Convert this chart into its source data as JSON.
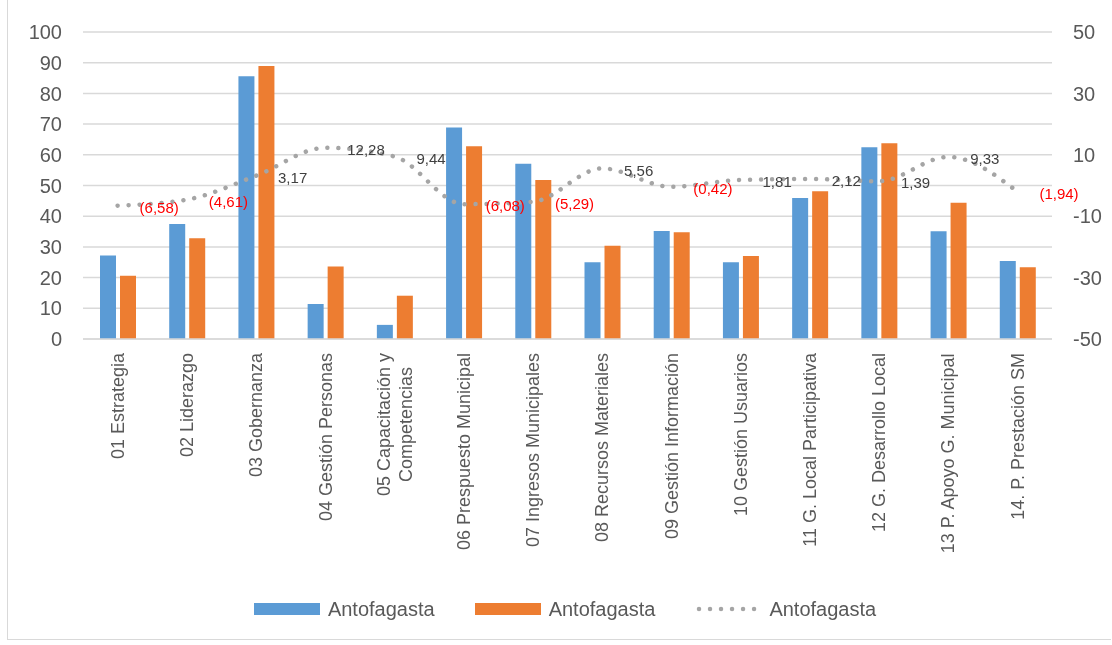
{
  "chart_data": {
    "type": "bar",
    "categories": [
      "01 Estrategia",
      "02 Liderazgo",
      "03 Gobernanza",
      "04 Gestión Personas",
      "05 Capacitación y Competencias",
      "06 Prespuesto Municipal",
      "07 Ingresos Municipales",
      "08 Recursos Materiales",
      "09 Gestión Información",
      "10 Gestión Usuarios",
      "11 G. Local Participativa",
      "12 G. Desarrollo Local",
      "13 P. Apoyo G. Municipal",
      "14. P. Prestación SM"
    ],
    "series": [
      {
        "name": "Antofagasta",
        "color": "#5b9bd5",
        "values": [
          27.2,
          37.5,
          85.6,
          11.4,
          4.6,
          68.9,
          57.1,
          25.0,
          35.2,
          25.0,
          45.9,
          62.5,
          35.1,
          25.4
        ]
      },
      {
        "name": "Antofagasta",
        "color": "#ed7d31",
        "values": [
          20.6,
          32.8,
          88.9,
          23.6,
          14.1,
          62.8,
          51.8,
          30.4,
          34.8,
          27.0,
          48.1,
          63.8,
          44.4,
          23.4
        ]
      },
      {
        "name": "Antofagasta",
        "type": "line",
        "axis": "y2",
        "color": "#a5a5a5",
        "line_style": "dotted",
        "values": [
          -6.58,
          -4.61,
          3.17,
          12.28,
          9.44,
          -6.08,
          -5.29,
          5.56,
          -0.42,
          1.81,
          2.12,
          1.39,
          9.33,
          -1.94
        ],
        "value_labels": [
          "(6,58)",
          "(4,61)",
          "3,17",
          "12,28",
          "9,44",
          "(6,08)",
          "(5,29)",
          "5,56",
          "(0,42)",
          "1,81",
          "2,12",
          "1,39",
          "9,33",
          "(1,94)"
        ]
      }
    ],
    "ylim": [
      0,
      100
    ],
    "yticks": [
      0,
      10,
      20,
      30,
      40,
      50,
      60,
      70,
      80,
      90,
      100
    ],
    "y2lim": [
      -50,
      50
    ],
    "y2ticks": [
      -50,
      -30,
      -10,
      10,
      30,
      50
    ],
    "grid": "y",
    "legend": "bottom"
  }
}
